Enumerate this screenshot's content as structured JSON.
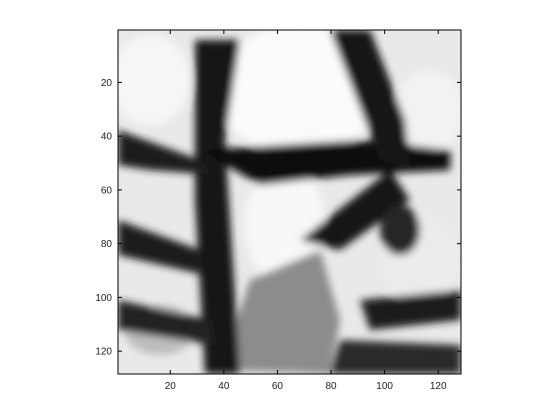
{
  "chart_data": {
    "type": "heatmap",
    "colormap": "gray",
    "title": "",
    "xlabel": "",
    "ylabel": "",
    "xlim": [
      0.5,
      128.5
    ],
    "ylim": [
      0.5,
      128.5
    ],
    "y_direction": "reverse",
    "grid": false,
    "legend": "none",
    "x_ticks": [
      20,
      40,
      60,
      80,
      100,
      120
    ],
    "y_ticks": [
      20,
      40,
      60,
      80,
      100,
      120
    ],
    "x_tick_labels": [
      "20",
      "40",
      "60",
      "80",
      "100",
      "120"
    ],
    "y_tick_labels": [
      "20",
      "40",
      "60",
      "80",
      "100",
      "120"
    ],
    "colors": {
      "axis": "#000000",
      "background": "#ffffff",
      "dark": "#0c0c0c",
      "light": "#f4f4f4"
    }
  }
}
